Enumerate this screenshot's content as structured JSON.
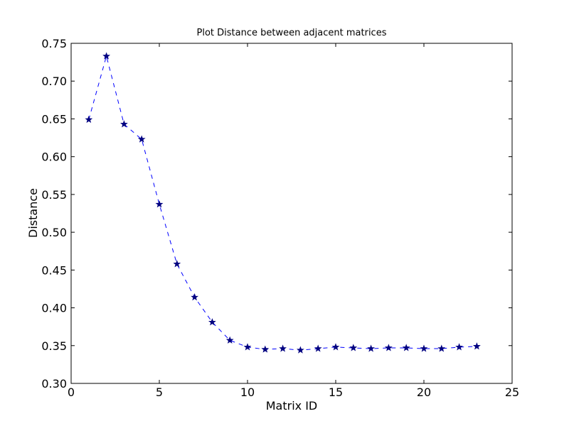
{
  "chart_data": {
    "type": "line",
    "title": "Plot Distance between adjacent matrices",
    "xlabel": "Matrix ID",
    "ylabel": "Distance",
    "xlim": [
      0,
      25
    ],
    "ylim": [
      0.3,
      0.75
    ],
    "xticks": [
      "0",
      "5",
      "10",
      "15",
      "20",
      "25"
    ],
    "yticks": [
      "0.30",
      "0.35",
      "0.40",
      "0.45",
      "0.50",
      "0.55",
      "0.60",
      "0.65",
      "0.70",
      "0.75"
    ],
    "grid": false,
    "legend": "none",
    "series": [
      {
        "color": "#0000ff",
        "marker_color": "#000080",
        "line_style": "dashed",
        "marker": "star",
        "x": [
          1,
          2,
          3,
          4,
          5,
          6,
          7,
          8,
          9,
          10,
          11,
          12,
          13,
          14,
          15,
          16,
          17,
          18,
          19,
          20,
          21,
          22,
          23
        ],
        "y": [
          0.649,
          0.733,
          0.643,
          0.623,
          0.537,
          0.458,
          0.414,
          0.381,
          0.357,
          0.348,
          0.345,
          0.346,
          0.344,
          0.346,
          0.348,
          0.347,
          0.346,
          0.347,
          0.347,
          0.346,
          0.346,
          0.348,
          0.349
        ]
      }
    ]
  }
}
